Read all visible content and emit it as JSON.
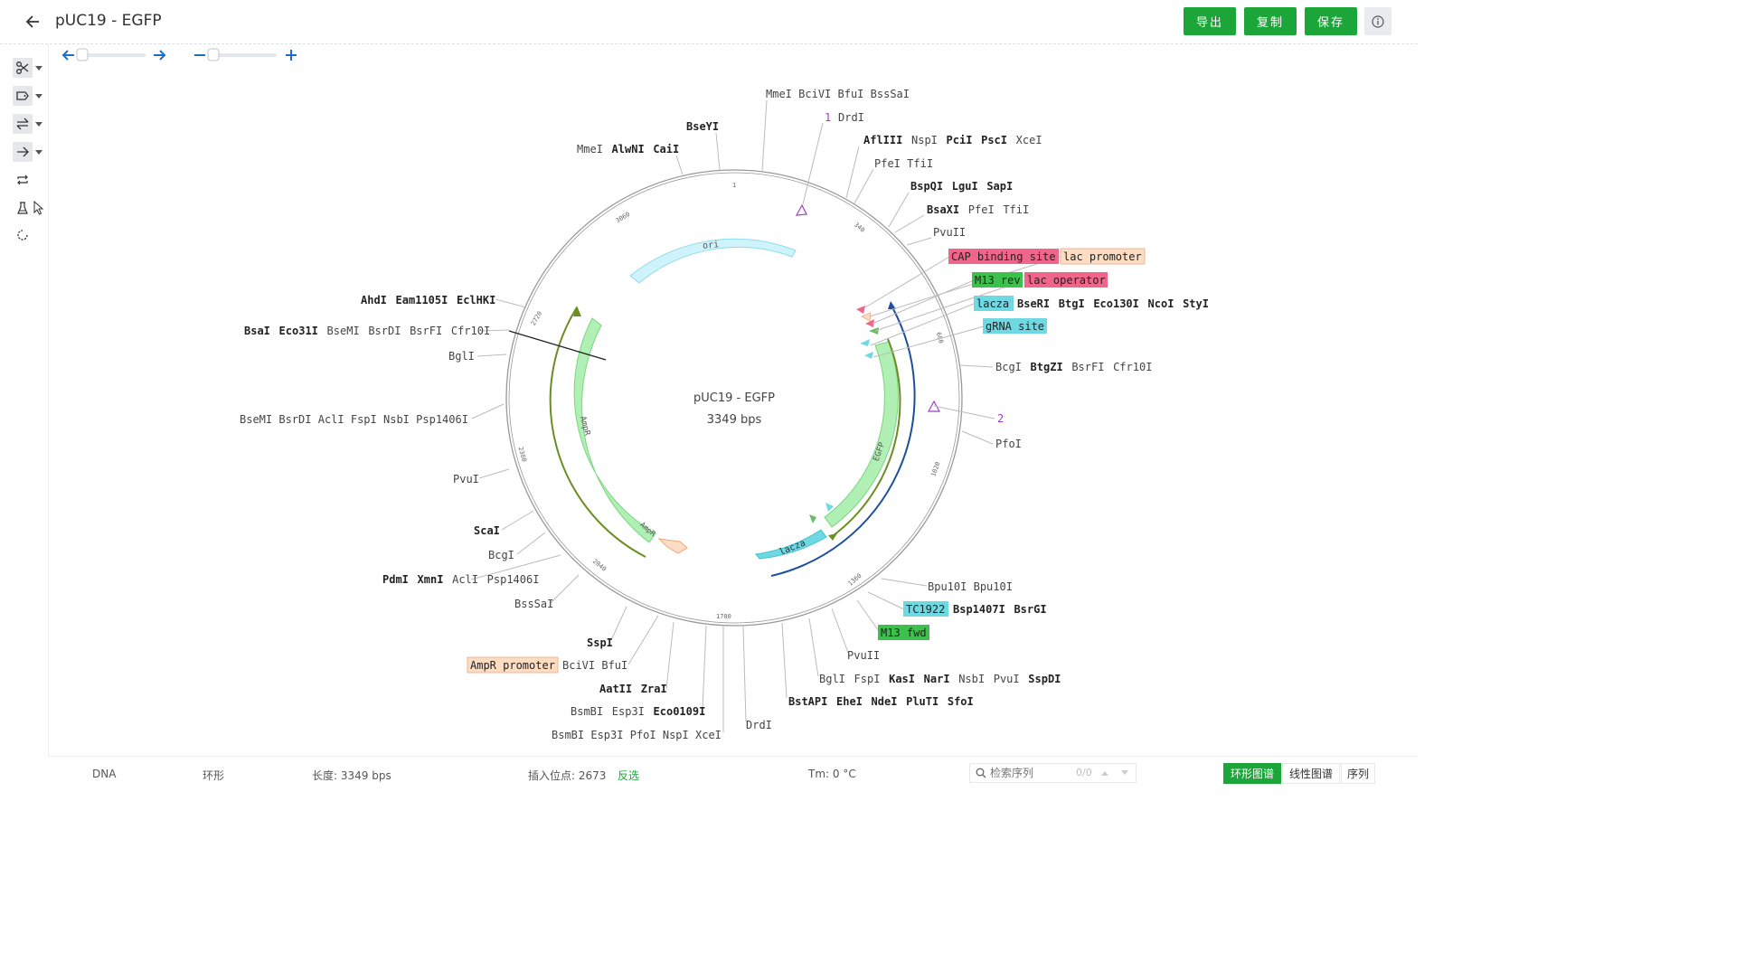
{
  "header": {
    "title": "pUC19 - EGFP",
    "export_label": "导出",
    "copy_label": "复制",
    "save_label": "保存",
    "info_icon": "info-icon"
  },
  "toolbar": {
    "tools": [
      "scissors-icon",
      "tag-icon",
      "swap-icon",
      "arrow-right-icon",
      "loop-icon",
      "flask-icon",
      "refresh-icon"
    ]
  },
  "map": {
    "name": "pUC19 - EGFP",
    "length_label": "3349 bps",
    "length": 3349,
    "ticks": [
      "1",
      "340",
      "680",
      "1020",
      "1360",
      "1700",
      "2040",
      "2380",
      "2720",
      "3060"
    ],
    "features": [
      {
        "name": "ori",
        "color": "#cff3fa"
      },
      {
        "name": "AmpR",
        "color": "#b0f0b4"
      },
      {
        "name": "EGFP",
        "color": "#b0f0b4"
      },
      {
        "name": "lacza",
        "color": "#6fd9e3"
      }
    ],
    "sites": [
      {
        "name": "1",
        "color": "#9b3fc9"
      },
      {
        "name": "2",
        "color": "#9b3fc9"
      }
    ],
    "labels": {
      "mmel_bcivi": [
        "MmeI",
        "BciVI",
        "BfuI",
        "BssSaI"
      ],
      "drdi_top": "DrdI",
      "afliii": [
        "AflIII",
        "NspI",
        "PciI",
        "PscI",
        "XceI"
      ],
      "pfei_tfii": [
        "PfeI",
        "TfiI"
      ],
      "bspqi": [
        "BspQI",
        "LguI",
        "SapI"
      ],
      "bsaxi": [
        "BsaXI",
        "PfeI",
        "TfiI"
      ],
      "pvuii_top": "PvuII",
      "cap_site": "CAP binding site",
      "lac_promoter": "lac promoter",
      "m13_rev": "M13 rev",
      "lac_operator": "lac operator",
      "lacza_tag": "lacza",
      "bseri": [
        "BseRI",
        "BtgI",
        "Eco130I",
        "NcoI",
        "StyI"
      ],
      "grna_site": "gRNA site",
      "bcgi": [
        "BcgI",
        "BtgZI",
        "BsrFI",
        "Cfr10I"
      ],
      "site2": "2",
      "pfoi": "PfoI",
      "bseyi": "BseYI",
      "mmei_alwni": [
        "MmeI",
        "AlwNI",
        "CaiI"
      ],
      "ahdi": [
        "AhdI",
        "Eam1105I",
        "EclHKI"
      ],
      "bsai": [
        "BsaI",
        "Eco31I",
        "BseMI",
        "BsrDI",
        "BsrFI",
        "Cfr10I"
      ],
      "bgli_left": "BglI",
      "bsemi": [
        "BseMI",
        "BsrDI",
        "AclI",
        "FspI",
        "NsbI",
        "Psp1406I"
      ],
      "pvui_left": "PvuI",
      "scai": "ScaI",
      "bcgi_left": "BcgI",
      "pdmi": [
        "PdmI",
        "XmnI",
        "AclI",
        "Psp1406I"
      ],
      "bsssai": "BssSaI",
      "sspi": "SspI",
      "ampr_promoter": "AmpR promoter",
      "bcivi_bfui": [
        "BciVI",
        "BfuI"
      ],
      "aatii": [
        "AatII",
        "ZraI"
      ],
      "bsmbi1": [
        "BsmBI",
        "Esp3I",
        "Eco0109I"
      ],
      "bsmbi2": [
        "BsmBI",
        "Esp3I",
        "PfoI",
        "NspI",
        "XceI"
      ],
      "drdi_bottom": "DrdI",
      "bpu10i": [
        "Bpu10I",
        "Bpu10I"
      ],
      "tc1922": "TC1922",
      "bsp1407i": [
        "Bsp1407I",
        "BsrGI"
      ],
      "m13_fwd": "M13 fwd",
      "pvuii_bottom": "PvuII",
      "bgli_bottom": [
        "BglI",
        "FspI",
        "KasI",
        "NarI",
        "NsbI",
        "PvuI",
        "SspDI"
      ],
      "bstapi": [
        "BstAPI",
        "EheI",
        "NdeI",
        "PluTI",
        "SfoI"
      ]
    }
  },
  "status": {
    "type": "DNA",
    "topology": "环形",
    "length_text": "长度: 3349 bps",
    "insert_text": "插入位点: 2673",
    "invert_label": "反选",
    "tm_text": "Tm: 0 °C",
    "search_placeholder": "检索序列",
    "search_count": "0/0",
    "views": [
      "环形图谱",
      "线性图谱",
      "序列"
    ],
    "active_view": "环形图谱"
  },
  "colors": {
    "accent": "#1ca63a",
    "nav_blue": "#1d6ec9",
    "feature_green": "#b0f0b4",
    "feature_cyan": "#6fd9e3",
    "label_red": "#f0668a",
    "label_peach": "#fddcc4"
  }
}
